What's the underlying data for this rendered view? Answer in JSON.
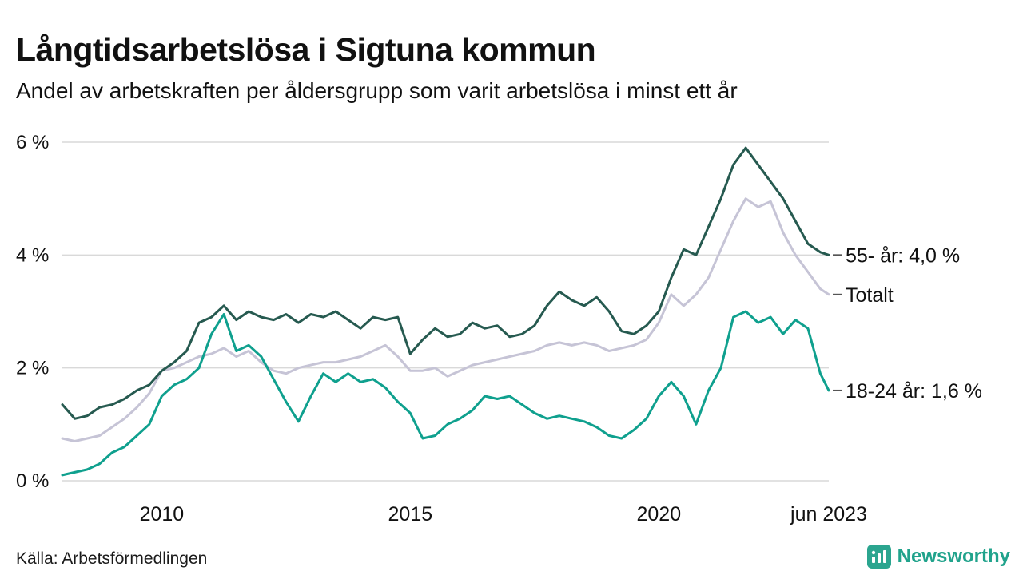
{
  "header": {
    "title": "Långtidsarbetslösa i Sigtuna kommun",
    "subtitle": "Andel av arbetskraften per åldersgrupp som varit arbetslösa i minst ett år"
  },
  "footer": {
    "source": "Källa: Arbetsförmedlingen",
    "brand": "Newsworthy"
  },
  "colors": {
    "series_55": "#265a50",
    "series_total": "#c6c4d6",
    "series_1824": "#0fa08e",
    "grid": "#d9d9d9",
    "text": "#111111",
    "brand_teal": "#21a38c"
  },
  "chart_data": {
    "type": "line",
    "title": "Långtidsarbetslösa i Sigtuna kommun",
    "subtitle": "Andel av arbetskraften per åldersgrupp som varit arbetslösa i minst ett år",
    "xlabel": "",
    "ylabel": "",
    "xlim": [
      2008.0,
      2023.42
    ],
    "ylim": [
      0,
      6
    ],
    "grid": "horizontal",
    "legend_position": "end-of-line-labels",
    "y_ticks": [
      {
        "v": 0,
        "label": "0 %"
      },
      {
        "v": 2,
        "label": "2 %"
      },
      {
        "v": 4,
        "label": "4 %"
      },
      {
        "v": 6,
        "label": "6 %"
      }
    ],
    "x_ticks": [
      {
        "x": 2010,
        "label": "2010"
      },
      {
        "x": 2015,
        "label": "2015"
      },
      {
        "x": 2020,
        "label": "2020"
      },
      {
        "x": 2023.42,
        "label": "jun 2023"
      }
    ],
    "x": [
      2008.0,
      2008.25,
      2008.5,
      2008.75,
      2009.0,
      2009.25,
      2009.5,
      2009.75,
      2010.0,
      2010.25,
      2010.5,
      2010.75,
      2011.0,
      2011.25,
      2011.5,
      2011.75,
      2012.0,
      2012.25,
      2012.5,
      2012.75,
      2013.0,
      2013.25,
      2013.5,
      2013.75,
      2014.0,
      2014.25,
      2014.5,
      2014.75,
      2015.0,
      2015.25,
      2015.5,
      2015.75,
      2016.0,
      2016.25,
      2016.5,
      2016.75,
      2017.0,
      2017.25,
      2017.5,
      2017.75,
      2018.0,
      2018.25,
      2018.5,
      2018.75,
      2019.0,
      2019.25,
      2019.5,
      2019.75,
      2020.0,
      2020.25,
      2020.5,
      2020.75,
      2021.0,
      2021.25,
      2021.5,
      2021.75,
      2022.0,
      2022.25,
      2022.5,
      2022.75,
      2023.0,
      2023.25,
      2023.42
    ],
    "series": [
      {
        "name": "Totalt",
        "color": "#c6c4d6",
        "end_label": "Totalt",
        "end_value": 3.3,
        "values": [
          0.75,
          0.7,
          0.75,
          0.8,
          0.95,
          1.1,
          1.3,
          1.55,
          1.95,
          2.0,
          2.1,
          2.2,
          2.25,
          2.35,
          2.2,
          2.3,
          2.1,
          1.95,
          1.9,
          2.0,
          2.05,
          2.1,
          2.1,
          2.15,
          2.2,
          2.3,
          2.4,
          2.2,
          1.95,
          1.95,
          2.0,
          1.85,
          1.95,
          2.05,
          2.1,
          2.15,
          2.2,
          2.25,
          2.3,
          2.4,
          2.45,
          2.4,
          2.45,
          2.4,
          2.3,
          2.35,
          2.4,
          2.5,
          2.8,
          3.3,
          3.1,
          3.3,
          3.6,
          4.1,
          4.6,
          5.0,
          4.85,
          4.95,
          4.4,
          4.0,
          3.7,
          3.4,
          3.3
        ]
      },
      {
        "name": "18-24 år",
        "color": "#0fa08e",
        "end_label": "18-24 år: 1,6 %",
        "end_value": 1.6,
        "values": [
          0.1,
          0.15,
          0.2,
          0.3,
          0.5,
          0.6,
          0.8,
          1.0,
          1.5,
          1.7,
          1.8,
          2.0,
          2.6,
          2.95,
          2.3,
          2.4,
          2.2,
          1.8,
          1.4,
          1.05,
          1.5,
          1.9,
          1.75,
          1.9,
          1.75,
          1.8,
          1.65,
          1.4,
          1.2,
          0.75,
          0.8,
          1.0,
          1.1,
          1.25,
          1.5,
          1.45,
          1.5,
          1.35,
          1.2,
          1.1,
          1.15,
          1.1,
          1.05,
          0.95,
          0.8,
          0.75,
          0.9,
          1.1,
          1.5,
          1.75,
          1.5,
          1.0,
          1.6,
          2.0,
          2.9,
          3.0,
          2.8,
          2.9,
          2.6,
          2.85,
          2.7,
          1.9,
          1.6
        ]
      },
      {
        "name": "55- år",
        "color": "#265a50",
        "end_label": "55- år: 4,0 %",
        "end_value": 4.0,
        "values": [
          1.35,
          1.1,
          1.15,
          1.3,
          1.35,
          1.45,
          1.6,
          1.7,
          1.95,
          2.1,
          2.3,
          2.8,
          2.9,
          3.1,
          2.85,
          3.0,
          2.9,
          2.85,
          2.95,
          2.8,
          2.95,
          2.9,
          3.0,
          2.85,
          2.7,
          2.9,
          2.85,
          2.9,
          2.25,
          2.5,
          2.7,
          2.55,
          2.6,
          2.8,
          2.7,
          2.75,
          2.55,
          2.6,
          2.75,
          3.1,
          3.35,
          3.2,
          3.1,
          3.25,
          3.0,
          2.65,
          2.6,
          2.75,
          3.0,
          3.6,
          4.1,
          4.0,
          4.5,
          5.0,
          5.6,
          5.9,
          5.6,
          5.3,
          5.0,
          4.6,
          4.2,
          4.05,
          4.0
        ]
      }
    ]
  }
}
